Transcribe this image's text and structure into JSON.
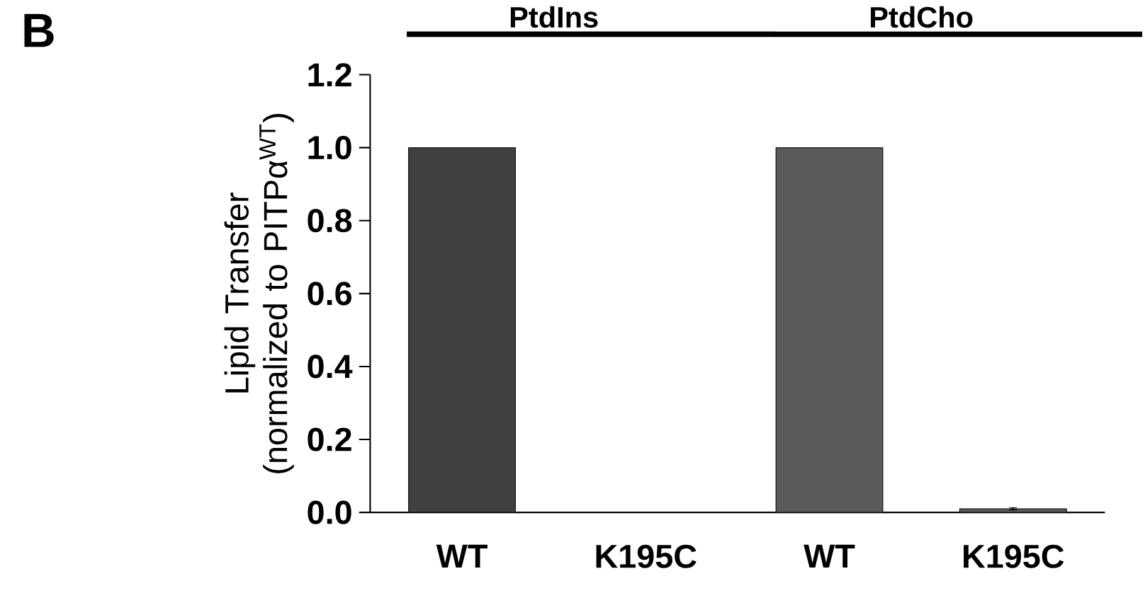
{
  "chart_data": {
    "type": "bar",
    "ylabel": "Lipid Transfer (normalized to PITPα$^{WT}$)",
    "categories": [
      "WT",
      "K195C",
      "WT",
      "K195C"
    ],
    "values": [
      1.0,
      0.0,
      1.0,
      0.01
    ],
    "errors": [
      null,
      null,
      null,
      0.003
    ],
    "colors": [
      "#404040",
      "#404040",
      "#5a5a5a",
      "#5a5a5a"
    ],
    "ylim": [
      0,
      1.2
    ],
    "yticks": [
      {
        "value": 0,
        "label": "0.0"
      },
      {
        "value": 0.2,
        "label": "0.2"
      },
      {
        "value": 0.4,
        "label": "0.4"
      },
      {
        "value": 0.6,
        "label": "0.6"
      },
      {
        "value": 0.8,
        "label": "0.8"
      },
      {
        "value": 1.0,
        "label": "1.0"
      },
      {
        "value": 1.2,
        "label": "1.2"
      }
    ],
    "annotations": [
      "B",
      "PtdIns",
      "PtdCho"
    ]
  }
}
